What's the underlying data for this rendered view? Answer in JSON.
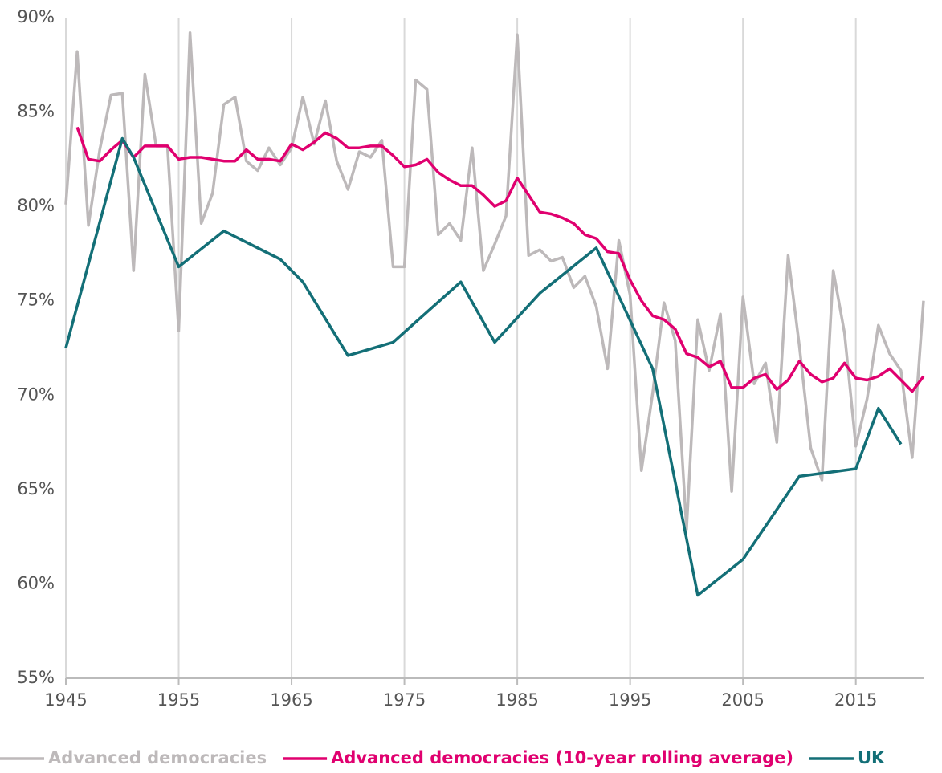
{
  "chart_data": {
    "type": "line",
    "x": [
      1945,
      1946,
      1947,
      1948,
      1949,
      1950,
      1951,
      1952,
      1953,
      1954,
      1955,
      1956,
      1957,
      1958,
      1959,
      1960,
      1961,
      1962,
      1963,
      1964,
      1965,
      1966,
      1967,
      1968,
      1969,
      1970,
      1971,
      1972,
      1973,
      1974,
      1975,
      1976,
      1977,
      1978,
      1979,
      1980,
      1981,
      1982,
      1983,
      1984,
      1985,
      1986,
      1987,
      1988,
      1989,
      1990,
      1991,
      1992,
      1993,
      1994,
      1995,
      1996,
      1997,
      1998,
      1999,
      2000,
      2001,
      2002,
      2003,
      2004,
      2005,
      2006,
      2007,
      2008,
      2009,
      2010,
      2011,
      2012,
      2013,
      2014,
      2015,
      2016,
      2017,
      2018,
      2019,
      2020,
      2021
    ],
    "series": [
      {
        "name": "Advanced democracies",
        "color": "#bdb9ba",
        "values": [
          80.1,
          88.2,
          79.0,
          83.0,
          85.9,
          86.0,
          76.6,
          87.0,
          83.2,
          83.2,
          73.4,
          89.2,
          79.1,
          80.7,
          85.4,
          85.8,
          82.4,
          81.9,
          83.1,
          82.2,
          83.1,
          85.8,
          83.3,
          85.6,
          82.4,
          80.9,
          82.9,
          82.6,
          83.5,
          76.8,
          76.8,
          86.7,
          86.2,
          78.5,
          79.1,
          78.2,
          83.1,
          76.6,
          78.0,
          79.5,
          89.1,
          77.4,
          77.7,
          77.1,
          77.3,
          75.7,
          76.3,
          74.7,
          71.4,
          78.2,
          75.3,
          66.0,
          70.1,
          74.9,
          72.9,
          62.9,
          74.0,
          71.3,
          74.3,
          64.9,
          75.2,
          70.6,
          71.7,
          67.5,
          77.4,
          72.6,
          67.2,
          65.5,
          76.6,
          73.3,
          67.3,
          69.8,
          73.7,
          72.2,
          71.3,
          66.7,
          75.0
        ]
      },
      {
        "name": "Advanced democracies (10-year rolling average)",
        "color": "#e0006f",
        "values": [
          null,
          84.2,
          82.5,
          82.4,
          83.0,
          83.5,
          82.6,
          83.2,
          83.2,
          83.2,
          82.5,
          82.6,
          82.6,
          82.5,
          82.4,
          82.4,
          83.0,
          82.5,
          82.5,
          82.4,
          83.3,
          83.0,
          83.4,
          83.9,
          83.6,
          83.1,
          83.1,
          83.2,
          83.2,
          82.7,
          82.1,
          82.2,
          82.5,
          81.8,
          81.4,
          81.1,
          81.1,
          80.6,
          80.0,
          80.3,
          81.5,
          80.6,
          79.7,
          79.6,
          79.4,
          79.1,
          78.5,
          78.3,
          77.6,
          77.5,
          76.1,
          75.0,
          74.2,
          74.0,
          73.5,
          72.2,
          72.0,
          71.5,
          71.8,
          70.4,
          70.4,
          70.9,
          71.1,
          70.3,
          70.8,
          71.8,
          71.1,
          70.7,
          70.9,
          71.7,
          70.9,
          70.8,
          71.0,
          71.4,
          70.8,
          70.2,
          71.0
        ]
      },
      {
        "name": "UK",
        "color": "#136f77",
        "x": [
          1945,
          1950,
          1951,
          1955,
          1959,
          1964,
          1966,
          1970,
          1974,
          1980,
          1983,
          1987,
          1992,
          1997,
          2001,
          2005,
          2010,
          2015,
          2017,
          2019
        ],
        "values": [
          72.5,
          83.6,
          82.6,
          76.8,
          78.7,
          77.2,
          76.0,
          72.1,
          72.8,
          76.0,
          72.8,
          75.4,
          77.8,
          71.4,
          59.4,
          61.3,
          65.7,
          66.1,
          69.3,
          67.4
        ]
      }
    ],
    "xlim": [
      1945,
      2021
    ],
    "xticks": [
      1945,
      1955,
      1965,
      1975,
      1985,
      1995,
      2005,
      2015
    ],
    "ylim": [
      55,
      90
    ],
    "yticks": [
      {
        "value": 55,
        "label": "55%"
      },
      {
        "value": 60,
        "label": "60%"
      },
      {
        "value": 65,
        "label": "65%"
      },
      {
        "value": 70,
        "label": "70%"
      },
      {
        "value": 75,
        "label": "75%"
      },
      {
        "value": 80,
        "label": "80%"
      },
      {
        "value": 85,
        "label": "85%"
      },
      {
        "value": 90,
        "label": "90%"
      }
    ],
    "grid": true,
    "legend": "bottom"
  }
}
